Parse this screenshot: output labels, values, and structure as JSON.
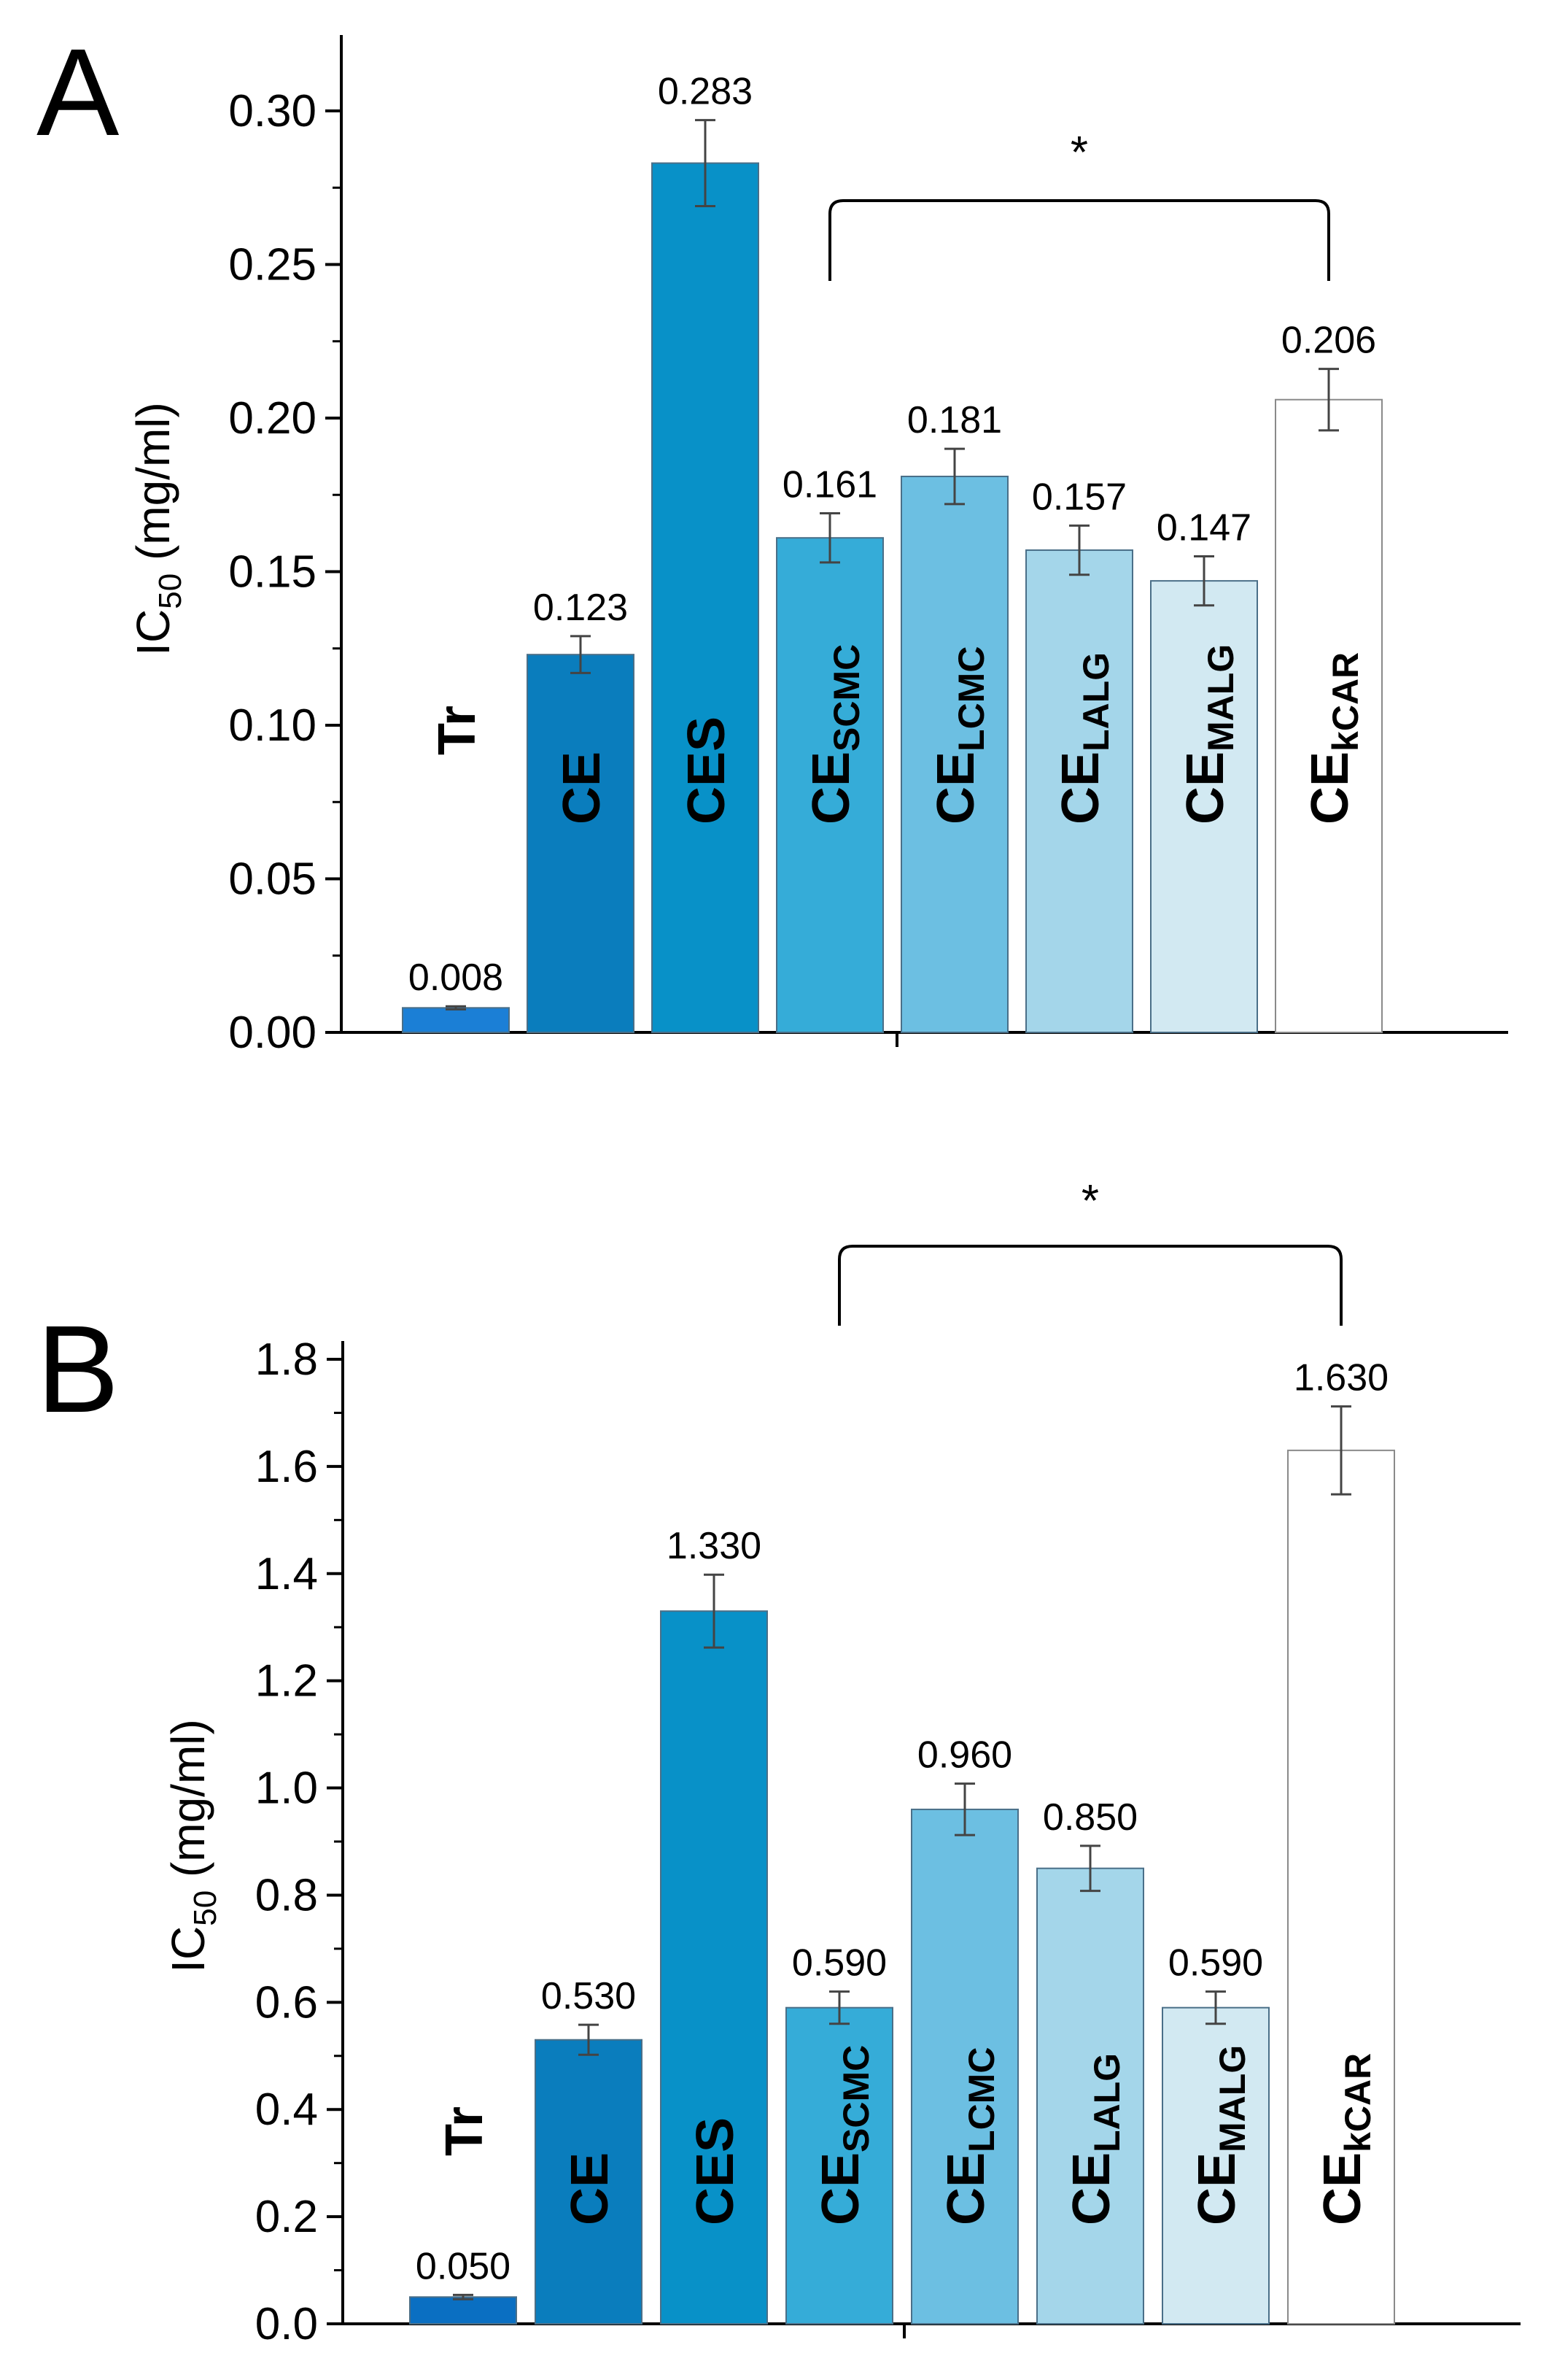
{
  "chart_data": [
    {
      "panel": "A",
      "type": "bar",
      "ylabel": {
        "main": "IC",
        "sub": "50",
        "unit": " (mg/ml)"
      },
      "ylim": [
        0,
        0.32
      ],
      "yticks": [
        "0.00",
        "0.05",
        "0.10",
        "0.15",
        "0.20",
        "0.25",
        "0.30"
      ],
      "ytick_values": [
        0,
        0.05,
        0.1,
        0.15,
        0.2,
        0.25,
        0.3
      ],
      "categories": [
        {
          "main": "Tr",
          "sub": ""
        },
        {
          "main": "CE",
          "sub": ""
        },
        {
          "main": "CES",
          "sub": ""
        },
        {
          "main": "CE",
          "sub": "SCMC"
        },
        {
          "main": "CE",
          "sub": "LCMC"
        },
        {
          "main": "CE",
          "sub": "LALG"
        },
        {
          "main": "CE",
          "sub": "MALG"
        },
        {
          "main": "CE",
          "sub": "kCAR"
        }
      ],
      "values": [
        0.008,
        0.123,
        0.283,
        0.161,
        0.181,
        0.157,
        0.147,
        0.206
      ],
      "value_labels": [
        "0.008",
        "0.123",
        "0.283",
        "0.161",
        "0.181",
        "0.157",
        "0.147",
        "0.206"
      ],
      "errors": [
        0.0005,
        0.006,
        0.014,
        0.008,
        0.009,
        0.008,
        0.008,
        0.01
      ],
      "colors": [
        "#1b7fd6",
        "#0a7dbd",
        "#0891c8",
        "#35acd8",
        "#6cbfe2",
        "#a4d6ea",
        "#d2e9f2",
        "#ffffff"
      ],
      "significance": {
        "label": "*",
        "from_index": 3,
        "to_index": 7
      },
      "grid": false,
      "legend": "none"
    },
    {
      "panel": "B",
      "type": "bar",
      "ylabel": {
        "main": "IC",
        "sub": "50",
        "unit": " (mg/ml)"
      },
      "ylim": [
        0,
        1.8
      ],
      "yticks": [
        "0.0",
        "0.2",
        "0.4",
        "0.6",
        "0.8",
        "1.0",
        "1.2",
        "1.4",
        "1.6",
        "1.8"
      ],
      "ytick_values": [
        0,
        0.2,
        0.4,
        0.6,
        0.8,
        1.0,
        1.2,
        1.4,
        1.6,
        1.8
      ],
      "categories": [
        {
          "main": "Tr",
          "sub": ""
        },
        {
          "main": "CE",
          "sub": ""
        },
        {
          "main": "CES",
          "sub": ""
        },
        {
          "main": "CE",
          "sub": "SCMC"
        },
        {
          "main": "CE",
          "sub": "LCMC"
        },
        {
          "main": "CE",
          "sub": "LALG"
        },
        {
          "main": "CE",
          "sub": "MALG"
        },
        {
          "main": "CE",
          "sub": "kCAR"
        }
      ],
      "values": [
        0.05,
        0.53,
        1.33,
        0.59,
        0.96,
        0.85,
        0.59,
        1.63
      ],
      "value_labels": [
        "0.050",
        "0.530",
        "1.330",
        "0.590",
        "0.960",
        "0.850",
        "0.590",
        "1.630"
      ],
      "errors": [
        0.004,
        0.028,
        0.068,
        0.03,
        0.048,
        0.042,
        0.03,
        0.082
      ],
      "colors": [
        "#0a6fc2",
        "#0a7dbd",
        "#0891c8",
        "#35acd8",
        "#6cbfe2",
        "#a4d6ea",
        "#d2e9f2",
        "#ffffff"
      ],
      "significance": {
        "label": "*",
        "from_index": 3,
        "to_index": 7
      },
      "grid": false,
      "legend": "none"
    }
  ]
}
